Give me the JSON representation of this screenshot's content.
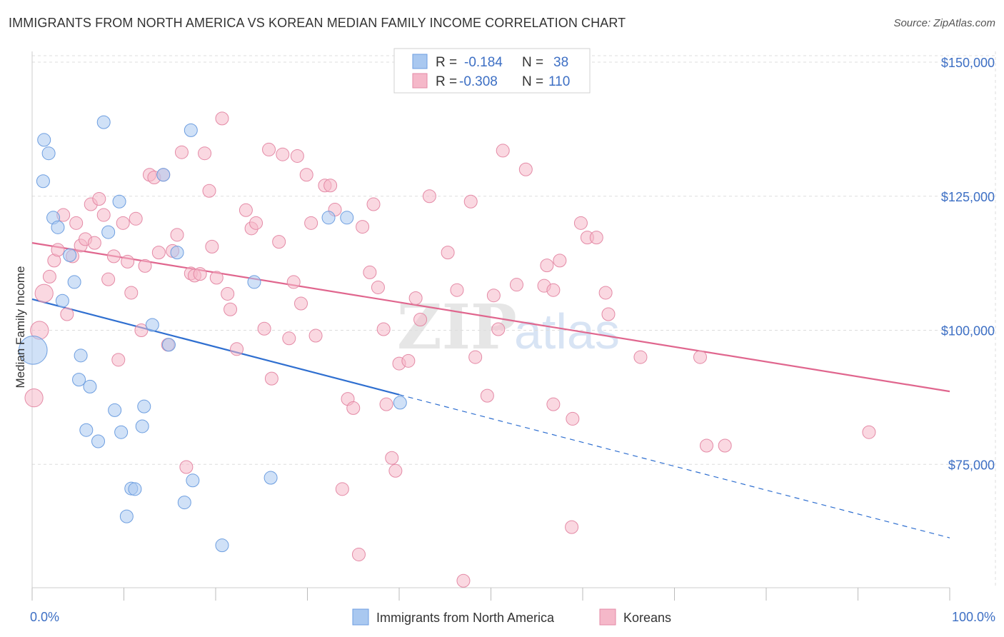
{
  "title": "IMMIGRANTS FROM NORTH AMERICA VS KOREAN MEDIAN FAMILY INCOME CORRELATION CHART",
  "source": "Source: ZipAtlas.com",
  "watermark": {
    "zip": "ZIP",
    "atlas": "atlas"
  },
  "colors": {
    "blue_fill": "#a9c8f0",
    "blue_stroke": "#6d9ee0",
    "blue_line": "#2f6fd0",
    "pink_fill": "#f5b8c9",
    "pink_stroke": "#e48aa6",
    "pink_line": "#e0668e",
    "tick_text": "#3d6fc4",
    "grid": "#dddddd"
  },
  "legend": {
    "rows": [
      {
        "r_label": "R =",
        "r_value": "-0.184",
        "n_label": "N =",
        "n_value": "38",
        "series": "blue"
      },
      {
        "r_label": "R =",
        "r_value": "-0.308",
        "n_label": "N =",
        "n_value": "110",
        "series": "pink"
      }
    ]
  },
  "bottom_legend": [
    {
      "label": "Immigrants from North America",
      "series": "blue"
    },
    {
      "label": "Koreans",
      "series": "pink"
    }
  ],
  "chart_data": {
    "type": "scatter",
    "title": "IMMIGRANTS FROM NORTH AMERICA VS KOREAN MEDIAN FAMILY INCOME CORRELATION CHART",
    "xlabel": "",
    "ylabel": "Median Family Income",
    "xlim": [
      0,
      100
    ],
    "ylim": [
      52000,
      152000
    ],
    "x_tick_labels": [
      {
        "value": 0,
        "label": "0.0%"
      },
      {
        "value": 100,
        "label": "100.0%"
      }
    ],
    "y_ticks": [
      {
        "value": 75000,
        "label": "$75,000"
      },
      {
        "value": 100000,
        "label": "$100,000"
      },
      {
        "value": 125000,
        "label": "$125,000"
      },
      {
        "value": 150000,
        "label": "$150,000"
      }
    ],
    "series": [
      {
        "name": "Immigrants from North America",
        "color": "blue",
        "trend": {
          "x0": 0,
          "y0": 105800,
          "x1": 40,
          "y1": 88000,
          "dash_to_x": 100,
          "dash_to_y": 61300
        },
        "points": [
          [
            0.1,
            96300,
            2.2
          ],
          [
            1.2,
            127800,
            1
          ],
          [
            1.3,
            135500,
            1
          ],
          [
            1.8,
            133000,
            1
          ],
          [
            2.3,
            121000,
            1
          ],
          [
            2.8,
            119200,
            1
          ],
          [
            3.3,
            105500,
            1
          ],
          [
            4.1,
            114000,
            1
          ],
          [
            4.6,
            109000,
            1
          ],
          [
            5.1,
            90800,
            1
          ],
          [
            5.3,
            95300,
            1
          ],
          [
            5.9,
            81400,
            1
          ],
          [
            6.3,
            89500,
            1
          ],
          [
            7.2,
            79300,
            1
          ],
          [
            7.8,
            138800,
            1
          ],
          [
            8.3,
            118300,
            1
          ],
          [
            9.0,
            85100,
            1
          ],
          [
            9.5,
            124000,
            1
          ],
          [
            9.7,
            81000,
            1
          ],
          [
            10.3,
            65300,
            1
          ],
          [
            10.8,
            70500,
            1
          ],
          [
            11.2,
            70400,
            1
          ],
          [
            12.0,
            82100,
            1
          ],
          [
            12.2,
            85800,
            1
          ],
          [
            13.1,
            101000,
            1
          ],
          [
            14.3,
            129000,
            1
          ],
          [
            14.9,
            97300,
            1
          ],
          [
            15.8,
            114500,
            1
          ],
          [
            16.6,
            67900,
            1
          ],
          [
            17.3,
            137300,
            1
          ],
          [
            17.5,
            72000,
            1
          ],
          [
            20.7,
            59900,
            1
          ],
          [
            24.2,
            109000,
            1
          ],
          [
            26.0,
            72500,
            1
          ],
          [
            32.3,
            121000,
            1
          ],
          [
            34.3,
            121000,
            1
          ],
          [
            40.1,
            86500,
            1
          ]
        ]
      },
      {
        "name": "Koreans",
        "color": "pink",
        "trend": {
          "x0": 0,
          "y0": 116300,
          "x1": 100,
          "y1": 88600
        },
        "points": [
          [
            0.2,
            87400,
            1.4
          ],
          [
            0.8,
            100000,
            1.4
          ],
          [
            1.3,
            106900,
            1.4
          ],
          [
            1.9,
            110000,
            1
          ],
          [
            2.4,
            113000,
            1
          ],
          [
            2.8,
            115000,
            1
          ],
          [
            3.4,
            121500,
            1
          ],
          [
            3.8,
            103000,
            1
          ],
          [
            4.4,
            113800,
            1
          ],
          [
            4.8,
            120000,
            1
          ],
          [
            5.3,
            115800,
            1
          ],
          [
            5.8,
            117000,
            1
          ],
          [
            6.4,
            123500,
            1
          ],
          [
            6.8,
            116300,
            1
          ],
          [
            7.3,
            124500,
            1
          ],
          [
            7.8,
            121500,
            1
          ],
          [
            8.3,
            109500,
            1
          ],
          [
            8.9,
            113800,
            1
          ],
          [
            9.4,
            94500,
            1
          ],
          [
            9.9,
            120000,
            1
          ],
          [
            10.4,
            112800,
            1
          ],
          [
            10.8,
            107000,
            1
          ],
          [
            11.3,
            120800,
            1
          ],
          [
            11.9,
            100000,
            1
          ],
          [
            12.3,
            112000,
            1
          ],
          [
            12.8,
            129000,
            1
          ],
          [
            13.3,
            128500,
            1
          ],
          [
            13.8,
            114500,
            1
          ],
          [
            14.3,
            129000,
            1
          ],
          [
            14.8,
            97300,
            1
          ],
          [
            15.3,
            114800,
            1
          ],
          [
            15.8,
            117800,
            1
          ],
          [
            16.3,
            133200,
            1
          ],
          [
            16.8,
            74500,
            1
          ],
          [
            17.3,
            110600,
            1
          ],
          [
            17.7,
            110200,
            1
          ],
          [
            18.3,
            110500,
            1
          ],
          [
            18.8,
            133000,
            1
          ],
          [
            19.3,
            126000,
            1
          ],
          [
            19.6,
            115600,
            1
          ],
          [
            20.1,
            109800,
            1
          ],
          [
            20.7,
            139500,
            1
          ],
          [
            21.3,
            106800,
            1
          ],
          [
            21.6,
            103900,
            1
          ],
          [
            22.3,
            96500,
            1
          ],
          [
            23.3,
            122400,
            1
          ],
          [
            23.9,
            119000,
            1
          ],
          [
            24.4,
            120000,
            1
          ],
          [
            25.3,
            100300,
            1
          ],
          [
            25.8,
            133700,
            1
          ],
          [
            26.1,
            91000,
            1
          ],
          [
            26.9,
            116500,
            1
          ],
          [
            27.3,
            132800,
            1
          ],
          [
            28.0,
            98500,
            1
          ],
          [
            28.5,
            109000,
            1
          ],
          [
            28.9,
            132500,
            1
          ],
          [
            29.3,
            105000,
            1
          ],
          [
            29.9,
            129000,
            1
          ],
          [
            30.4,
            120000,
            1
          ],
          [
            30.9,
            99000,
            1
          ],
          [
            31.9,
            127000,
            1
          ],
          [
            32.5,
            127000,
            1
          ],
          [
            33.0,
            122500,
            1
          ],
          [
            33.8,
            70400,
            1
          ],
          [
            34.4,
            87200,
            1
          ],
          [
            35.0,
            85500,
            1
          ],
          [
            35.6,
            58200,
            1
          ],
          [
            36.0,
            119300,
            1
          ],
          [
            36.8,
            110800,
            1
          ],
          [
            37.2,
            123500,
            1
          ],
          [
            37.7,
            108000,
            1
          ],
          [
            38.3,
            100200,
            1
          ],
          [
            38.6,
            86200,
            1
          ],
          [
            39.2,
            76200,
            1
          ],
          [
            39.6,
            73800,
            1
          ],
          [
            40.0,
            93800,
            1
          ],
          [
            41.0,
            94300,
            1
          ],
          [
            41.8,
            106000,
            1
          ],
          [
            42.3,
            102000,
            1
          ],
          [
            43.3,
            125000,
            1
          ],
          [
            45.3,
            114500,
            1
          ],
          [
            46.3,
            107500,
            1
          ],
          [
            47.0,
            53300,
            1
          ],
          [
            47.8,
            124000,
            1
          ],
          [
            48.3,
            95000,
            1
          ],
          [
            49.6,
            87800,
            1
          ],
          [
            50.3,
            106500,
            1
          ],
          [
            50.8,
            100200,
            1
          ],
          [
            51.3,
            133500,
            1
          ],
          [
            51.8,
            146900,
            1
          ],
          [
            52.8,
            108500,
            1
          ],
          [
            53.8,
            130000,
            1
          ],
          [
            55.8,
            108300,
            1
          ],
          [
            56.1,
            112100,
            1
          ],
          [
            56.8,
            86200,
            1
          ],
          [
            56.8,
            107500,
            1
          ],
          [
            57.5,
            113000,
            1
          ],
          [
            58.8,
            63300,
            1
          ],
          [
            58.9,
            83500,
            1
          ],
          [
            59.8,
            120000,
            1
          ],
          [
            60.5,
            117300,
            1
          ],
          [
            61.5,
            117300,
            1
          ],
          [
            62.5,
            107000,
            1
          ],
          [
            62.8,
            103000,
            1
          ],
          [
            66.3,
            95000,
            1
          ],
          [
            72.8,
            95000,
            1
          ],
          [
            73.5,
            78500,
            1
          ],
          [
            75.5,
            78500,
            1
          ],
          [
            91.2,
            81000,
            1
          ]
        ]
      }
    ]
  }
}
